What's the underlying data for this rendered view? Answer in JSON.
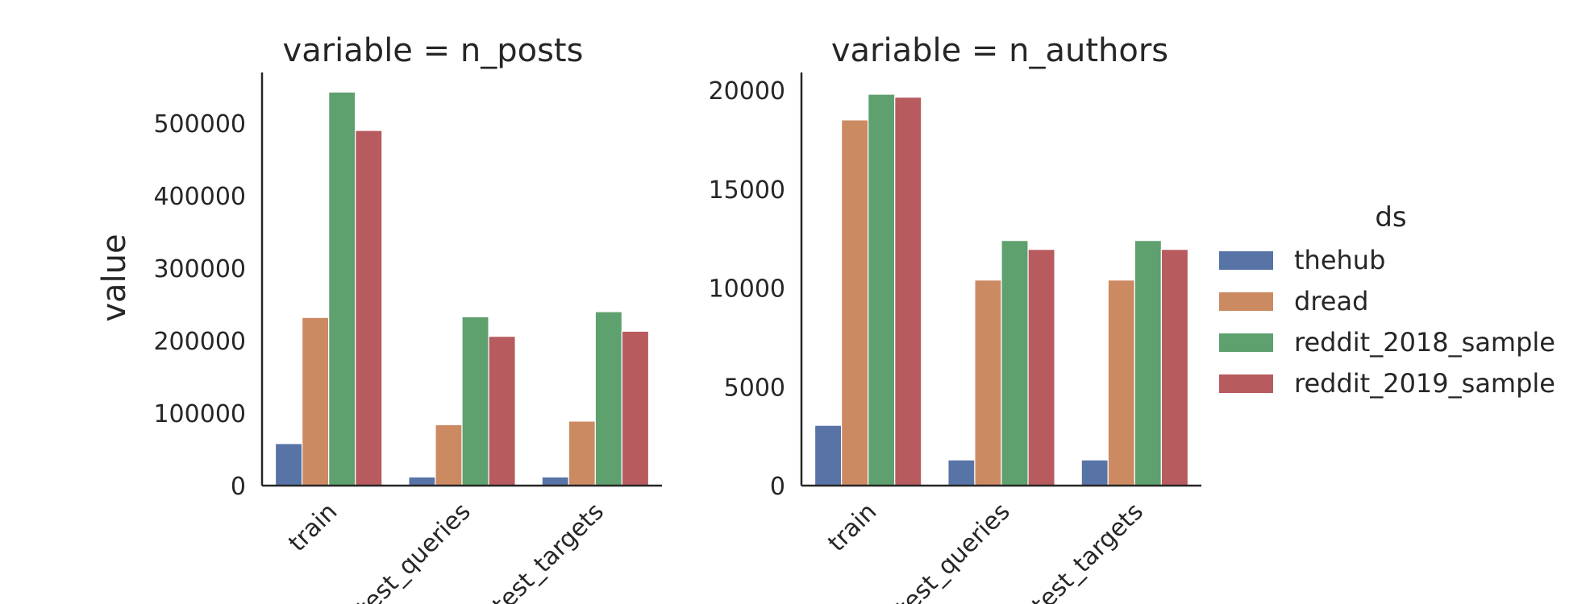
{
  "chart_data": {
    "type": "bar",
    "ylabel": "value",
    "legend": {
      "title": "ds",
      "placement": "right",
      "entries": [
        "thehub",
        "dread",
        "reddit_2018_sample",
        "reddit_2019_sample"
      ]
    },
    "colors": {
      "thehub": "#5874a7",
      "dread": "#cc8a63",
      "reddit_2018_sample": "#5fa06f",
      "reddit_2019_sample": "#b75b5f"
    },
    "panels": [
      {
        "title": "variable = n_posts",
        "categories": [
          "train",
          "test_queries",
          "test_targets"
        ],
        "ylim": [
          0,
          570000
        ],
        "yticks": [
          0,
          100000,
          200000,
          300000,
          400000,
          500000
        ],
        "yticklabels": [
          "0",
          "100000",
          "200000",
          "300000",
          "400000",
          "500000"
        ],
        "series": [
          {
            "name": "thehub",
            "values": [
              58000,
              12000,
              12000
            ]
          },
          {
            "name": "dread",
            "values": [
              232000,
              84000,
              89000
            ]
          },
          {
            "name": "reddit_2018_sample",
            "values": [
              543000,
              233000,
              240000
            ]
          },
          {
            "name": "reddit_2019_sample",
            "values": [
              490000,
              206000,
              213000
            ]
          }
        ]
      },
      {
        "title": "variable = n_authors",
        "categories": [
          "train",
          "test_queries",
          "test_targets"
        ],
        "ylim": [
          0,
          20900
        ],
        "yticks": [
          0,
          5000,
          10000,
          15000,
          20000
        ],
        "yticklabels": [
          "0",
          "5000",
          "10000",
          "15000",
          "20000"
        ],
        "series": [
          {
            "name": "thehub",
            "values": [
              3050,
              1300,
              1300
            ]
          },
          {
            "name": "dread",
            "values": [
              18500,
              10400,
              10400
            ]
          },
          {
            "name": "reddit_2018_sample",
            "values": [
              19800,
              12400,
              12400
            ]
          },
          {
            "name": "reddit_2019_sample",
            "values": [
              19650,
              11950,
              11950
            ]
          }
        ]
      }
    ]
  }
}
